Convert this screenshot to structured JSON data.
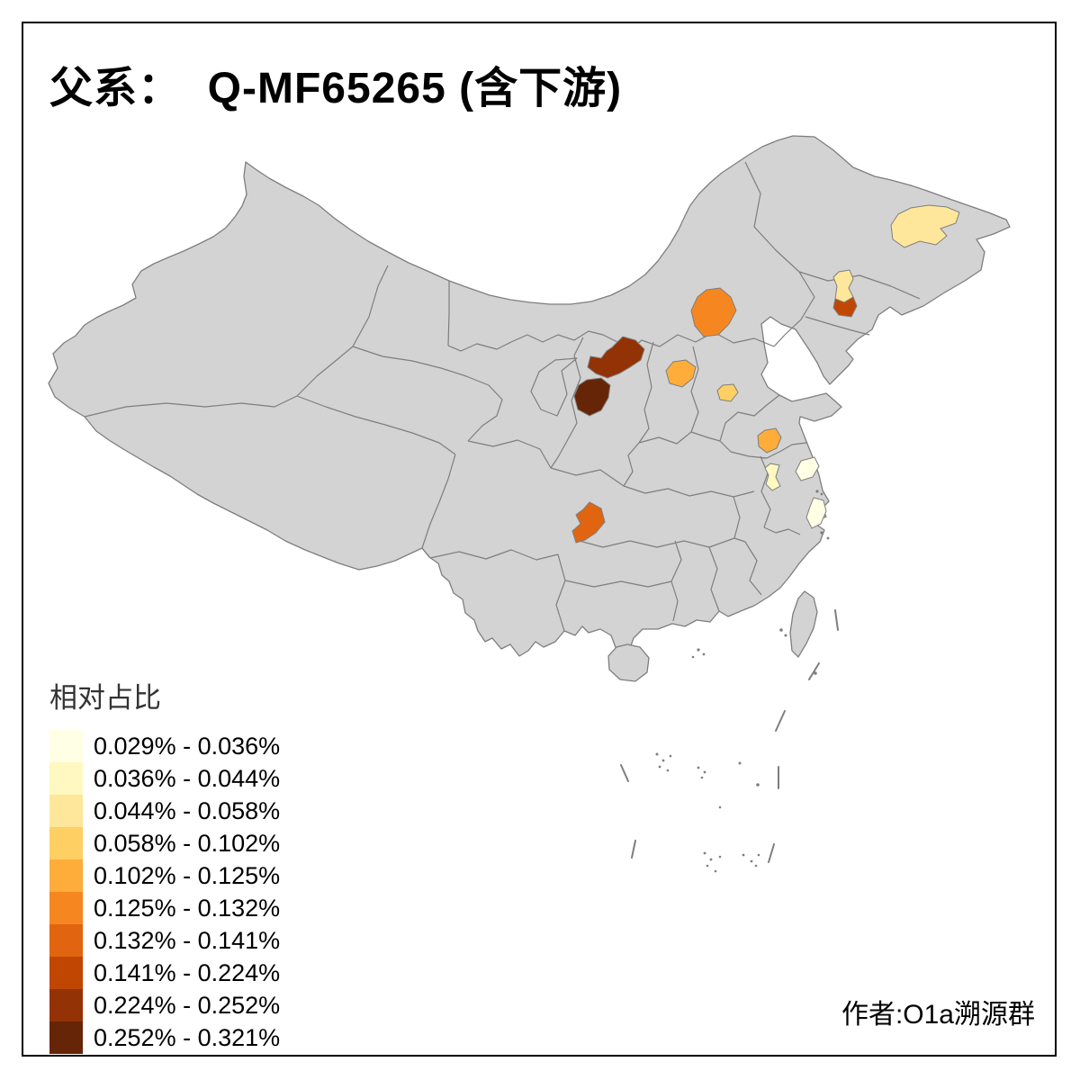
{
  "title": "父系：  Q-MF65265 (含下游)",
  "legend": {
    "title": "相对占比",
    "items": [
      {
        "label": "0.029% - 0.036%",
        "color": "#FFFFE5"
      },
      {
        "label": "0.036% - 0.044%",
        "color": "#FFF8C1"
      },
      {
        "label": "0.044% - 0.058%",
        "color": "#FEE79A"
      },
      {
        "label": "0.058% - 0.102%",
        "color": "#FECF63"
      },
      {
        "label": "0.102% - 0.125%",
        "color": "#FEAC3A"
      },
      {
        "label": "0.125% - 0.132%",
        "color": "#F68720"
      },
      {
        "label": "0.132% - 0.141%",
        "color": "#E16410"
      },
      {
        "label": "0.141% - 0.224%",
        "color": "#C04702"
      },
      {
        "label": "0.224% - 0.252%",
        "color": "#933204"
      },
      {
        "label": "0.252% - 0.321%",
        "color": "#662506"
      }
    ]
  },
  "credit": "作者:O1a溯源群",
  "map": {
    "land_color": "#D3D3D3",
    "border_color": "#7E7E7E",
    "sea_color": "#FFFFFF",
    "frame_color": "#000000",
    "regions": [
      {
        "id": "region-heilongjiang",
        "color": "#FEE79A",
        "range": "0.044% - 0.058%"
      },
      {
        "id": "region-jilin-south",
        "color": "#FEE79A",
        "range": "0.044% - 0.058%"
      },
      {
        "id": "region-liaoning-east",
        "color": "#C04702",
        "range": "0.141% - 0.224%"
      },
      {
        "id": "region-inner-mongolia",
        "color": "#F68720",
        "range": "0.125% - 0.132%"
      },
      {
        "id": "region-shanxi-east",
        "color": "#FEAC3A",
        "range": "0.102% - 0.125%"
      },
      {
        "id": "region-hebei-south",
        "color": "#FECF63",
        "range": "0.058% - 0.102%"
      },
      {
        "id": "region-shaanxi-yulin",
        "color": "#933204",
        "range": "0.224% - 0.252%"
      },
      {
        "id": "region-shaanxi-yanan",
        "color": "#662506",
        "range": "0.252% - 0.321%"
      },
      {
        "id": "region-jiangsu-north",
        "color": "#FEAC3A",
        "range": "0.102% - 0.125%"
      },
      {
        "id": "region-jiangsu-south",
        "color": "#FFF8C1",
        "range": "0.036% - 0.044%"
      },
      {
        "id": "region-jiangsu-east",
        "color": "#FFFFE5",
        "range": "0.029% - 0.036%"
      },
      {
        "id": "region-shanghai-area",
        "color": "#FFFFE5",
        "range": "0.029% - 0.036%"
      },
      {
        "id": "region-chongqing",
        "color": "#E16410",
        "range": "0.132% - 0.141%"
      }
    ]
  }
}
